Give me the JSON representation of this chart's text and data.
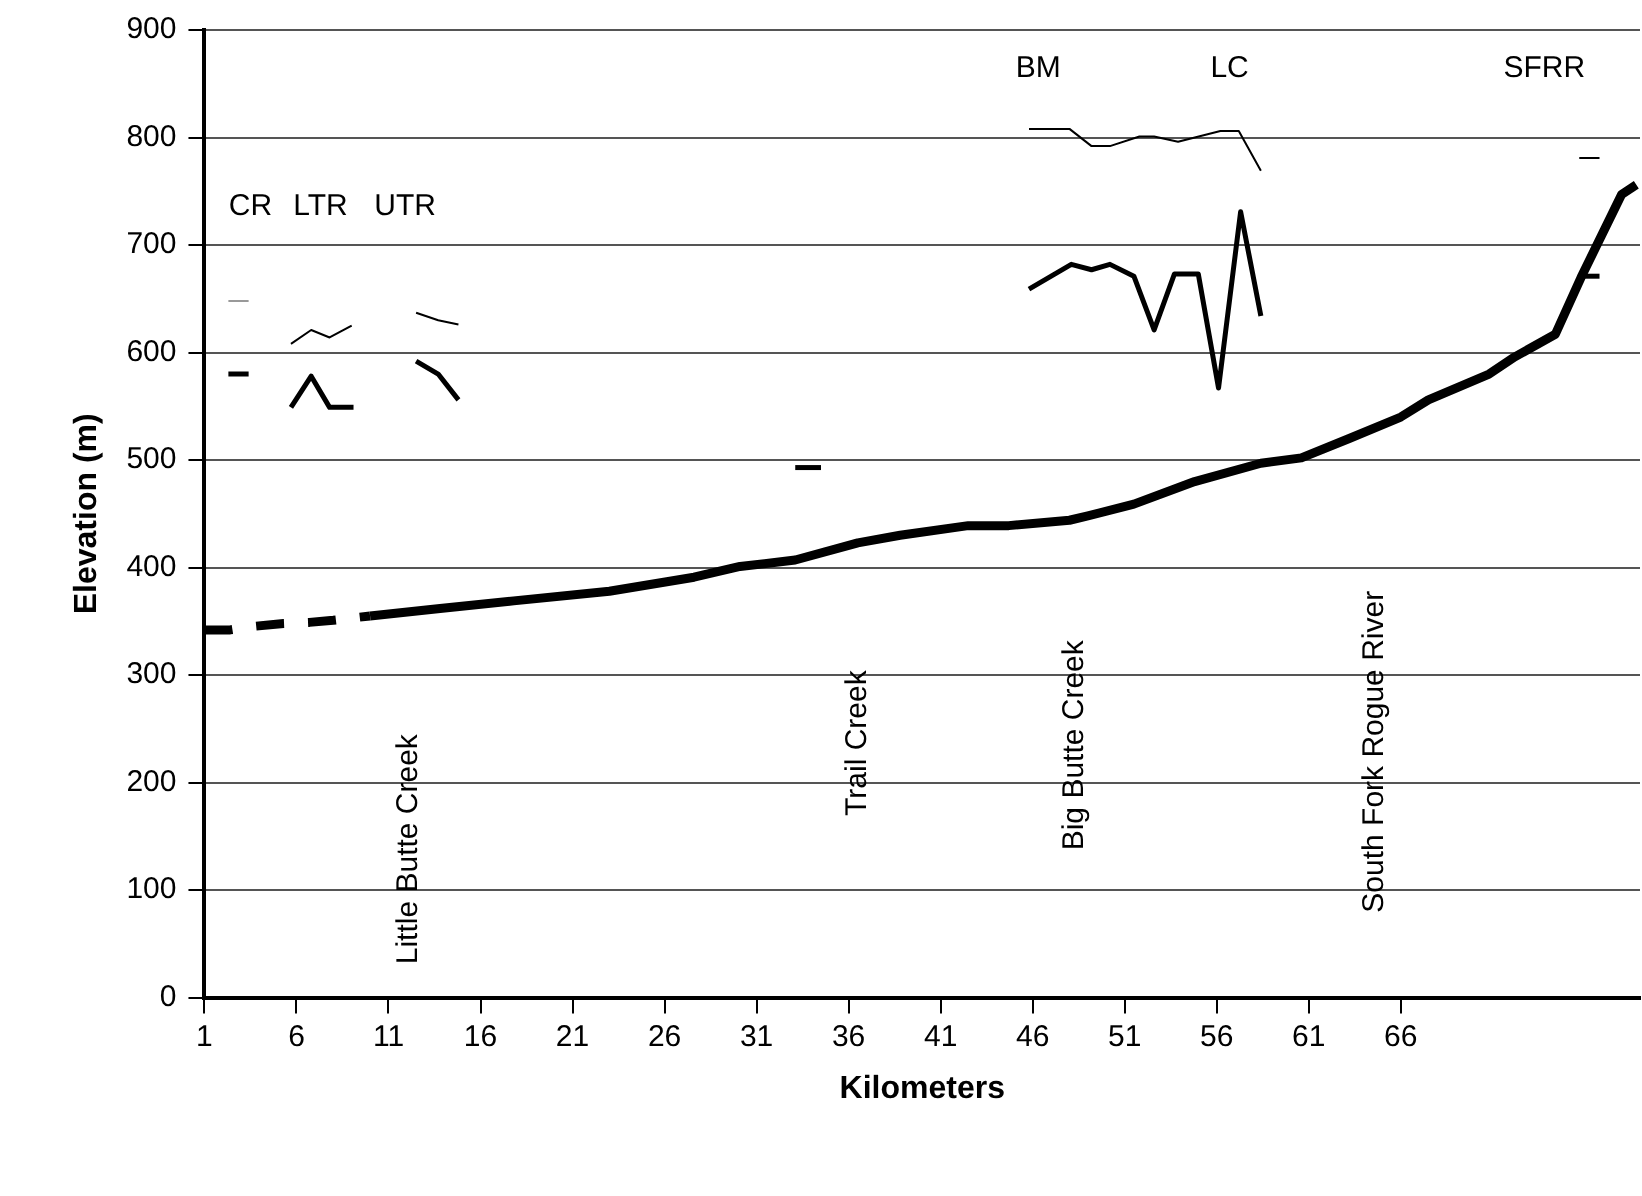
{
  "chart_data": {
    "type": "line",
    "xlabel": "Kilometers",
    "ylabel": "Elevation (m)",
    "xlim": [
      1,
      79
    ],
    "xticks": [
      1,
      6,
      11,
      16,
      21,
      26,
      31,
      36,
      41,
      46,
      51,
      56,
      61,
      66
    ],
    "ylim": [
      0,
      900
    ],
    "yticks": [
      0,
      100,
      200,
      300,
      400,
      500,
      600,
      700,
      800,
      900
    ],
    "grid": "y",
    "legend": false,
    "marker": "none",
    "series": [
      {
        "color": "#000000",
        "line_style": "dashed",
        "x": [
          1,
          2.4,
          3.5,
          5.3,
          6.7,
          8,
          10
        ],
        "values": [
          342,
          342,
          345,
          348,
          349,
          351,
          355
        ]
      },
      {
        "color": "#000000",
        "x": [
          10,
          13.8,
          17.8,
          23,
          27.6,
          30.1,
          33.1,
          36.5,
          38.8,
          42.5,
          44.7,
          48,
          49,
          51.5,
          54.8,
          58.4,
          60.6,
          63.2,
          66,
          67.5,
          70.8,
          72.2,
          74.4,
          75.8,
          78,
          78.8
        ],
        "values": [
          355,
          362,
          369,
          378,
          391,
          401,
          407,
          423,
          430,
          439,
          439,
          444,
          448,
          459,
          480,
          497,
          502,
          520,
          540,
          556,
          580,
          596,
          617,
          670,
          747,
          756
        ]
      },
      {
        "color": "#000000",
        "x": [
          2.3,
          3.4
        ],
        "values": [
          580,
          580
        ]
      },
      {
        "color": "#000000",
        "x": [
          5.7,
          6.8,
          7.8,
          9.1
        ],
        "values": [
          549,
          578,
          549,
          549
        ]
      },
      {
        "color": "#000000",
        "x": [
          12.5,
          13.7,
          14.8
        ],
        "values": [
          592,
          580,
          556
        ]
      },
      {
        "color": "#000000",
        "x": [
          33.1,
          34.5
        ],
        "values": [
          493,
          493
        ]
      },
      {
        "color": "#000000",
        "x": [
          45.8,
          48.1,
          49.2,
          50.2,
          51.5,
          52.6,
          53.7,
          55,
          56.1,
          57.3,
          58.4
        ],
        "values": [
          659,
          682,
          677,
          682,
          671,
          621,
          673,
          673,
          567,
          731,
          634
        ]
      },
      {
        "color": "#000000",
        "x": [
          75.7,
          76.8
        ],
        "values": [
          671,
          671
        ]
      },
      {
        "color": "#999999",
        "x": [
          2.3,
          3.4
        ],
        "values": [
          648,
          648
        ]
      },
      {
        "color": "#000000",
        "x": [
          5.7,
          6.8,
          7.8,
          9
        ],
        "values": [
          608,
          621,
          614,
          625
        ]
      },
      {
        "color": "#000000",
        "x": [
          12.5,
          13.7,
          14.8
        ],
        "values": [
          637,
          630,
          626
        ]
      },
      {
        "color": "#000000",
        "x": [
          45.8,
          48,
          49.2,
          50.2,
          51.8,
          52.6,
          53.9,
          56.2,
          57.2,
          58.4
        ],
        "values": [
          808,
          808,
          792,
          792,
          801,
          801,
          796,
          806,
          806,
          769
        ]
      },
      {
        "color": "#000000",
        "x": [
          75.7,
          76.8
        ],
        "values": [
          781,
          781
        ]
      }
    ],
    "annotations": [
      "CR",
      "LTR",
      "UTR",
      "BM",
      "LC",
      "SFRR",
      "Little Butte Creek",
      "Trail Creek",
      "Big Butte Creek",
      "South Fork Rogue River"
    ]
  }
}
